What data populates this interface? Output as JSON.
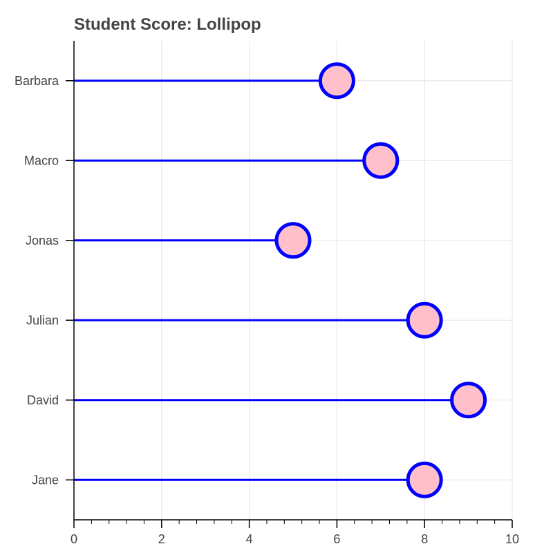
{
  "chart_data": {
    "type": "lollipop",
    "title": "Student Score: Lollipop",
    "categories": [
      "Barbara",
      "Macro",
      "Jonas",
      "Julian",
      "David",
      "Jane"
    ],
    "values": [
      6,
      7,
      5,
      8,
      9,
      8
    ],
    "xlim": [
      0,
      10
    ],
    "x_ticks": [
      0,
      2,
      4,
      6,
      8,
      10
    ],
    "xlabel": "",
    "ylabel": "",
    "grid": true,
    "colors": {
      "stem": "#0000ff",
      "marker_fill": "#ffc0cb",
      "marker_stroke": "#0000ff",
      "grid": "#e5e5e5",
      "axis": "#000000",
      "text": "#444444"
    }
  }
}
